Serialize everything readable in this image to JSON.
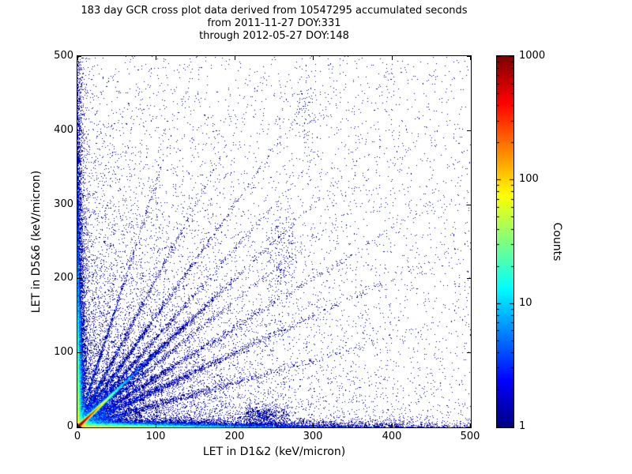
{
  "chart_data": {
    "type": "heatmap",
    "title": "183 day GCR cross plot data derived from 10547295 accumulated seconds",
    "subtitle1": "from 2011-11-27 DOY:331",
    "subtitle2": "through 2012-05-27 DOY:148",
    "xlabel": "LET in D1&2 (keV/micron)",
    "ylabel": "LET in D5&6 (keV/micron)",
    "xlim": [
      0,
      500
    ],
    "ylim": [
      0,
      500
    ],
    "xticks": [
      0,
      100,
      200,
      300,
      400,
      500
    ],
    "yticks": [
      0,
      100,
      200,
      300,
      400,
      500
    ],
    "grid": false,
    "colorbar": {
      "label": "Counts",
      "scale": "log",
      "min": 1,
      "max": 1000,
      "ticks": [
        1,
        10,
        100,
        1000
      ],
      "colormap": "jet"
    },
    "description": "2D histogram of coincident LET measurements in detector pairs D1&2 vs D5&6. A hot (red/yellow/cyan) dense diagonal correlation line hugs the origin out to ~60 keV/micron, with dense blue bands along both axes near zero, faint radial streaks fanning out from the origin at several slopes, and a sparse blue speckle of single counts over the whole 0-500 range.",
    "distribution": {
      "seed": 42,
      "components": [
        {
          "kind": "diag",
          "n": 50000,
          "mean": 11,
          "sigma": 1.2
        },
        {
          "kind": "diag",
          "n": 4000,
          "mean": 55,
          "sigma": 2.5
        },
        {
          "kind": "expexp",
          "n": 20000,
          "mean_x": 70,
          "mean_y": 2.2
        },
        {
          "kind": "expexp",
          "n": 5000,
          "mean_x": 200,
          "mean_y": 4
        },
        {
          "kind": "expexp",
          "n": 14000,
          "mean_x": 2.2,
          "mean_y": 80
        },
        {
          "kind": "expexp",
          "n": 4000,
          "mean_x": 4,
          "mean_y": 220
        },
        {
          "kind": "expexp",
          "n": 9000,
          "mean_x": 110,
          "mean_y": 110
        },
        {
          "kind": "streak",
          "slope": 0.3,
          "n": 1600,
          "mean_r": 100,
          "jitter": 2.5
        },
        {
          "kind": "streak",
          "slope": 0.5,
          "n": 2200,
          "mean_r": 110,
          "jitter": 2.5
        },
        {
          "kind": "streak",
          "slope": 0.67,
          "n": 1600,
          "mean_r": 120,
          "jitter": 2.5
        },
        {
          "kind": "streak",
          "slope": 0.85,
          "n": 1200,
          "mean_r": 100,
          "jitter": 2.5
        },
        {
          "kind": "streak",
          "slope": 1.2,
          "n": 1400,
          "mean_r": 110,
          "jitter": 2.5
        },
        {
          "kind": "streak",
          "slope": 1.5,
          "n": 1600,
          "mean_r": 110,
          "jitter": 2.5
        },
        {
          "kind": "streak",
          "slope": 2.0,
          "n": 1300,
          "mean_r": 100,
          "jitter": 2.5
        },
        {
          "kind": "streak",
          "slope": 3.3,
          "n": 1100,
          "mean_r": 100,
          "jitter": 2.5
        },
        {
          "kind": "uniform",
          "n": 3200
        },
        {
          "kind": "blob",
          "cx": 238,
          "cy": 16,
          "sx": 16,
          "sy": 7,
          "n": 600
        },
        {
          "kind": "blob",
          "cx": 262,
          "cy": 230,
          "sx": 10,
          "sy": 35,
          "n": 220
        },
        {
          "kind": "blob",
          "cx": 290,
          "cy": 430,
          "sx": 8,
          "sy": 25,
          "n": 80
        }
      ]
    }
  },
  "colors": {
    "background": "#ffffff",
    "axes": "#000000",
    "text": "#000000",
    "cmap_low": "#000080",
    "cmap_high": "#800000"
  }
}
